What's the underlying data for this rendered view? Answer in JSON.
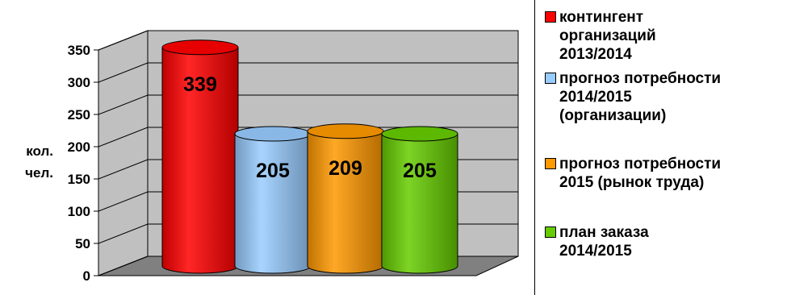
{
  "chart_data": {
    "type": "bar",
    "style": "3d-cylinder",
    "categories": [
      "контингент организаций 2013/2014",
      "прогноз потребности 2014/2015 (организации)",
      "прогноз потребности 2015 (рынок труда)",
      "план заказа 2014/2015"
    ],
    "values": [
      339,
      205,
      209,
      205
    ],
    "data_labels": [
      "339",
      "205",
      "209",
      "205"
    ],
    "ylabel_lines": [
      "кол.",
      "чел."
    ],
    "ylim": [
      0,
      350
    ],
    "yticks": [
      "0",
      "50",
      "100",
      "150",
      "200",
      "250",
      "300",
      "350"
    ],
    "grid": true,
    "legend_position": "right",
    "colors": [
      "#ff0000",
      "#99ccff",
      "#ff9900",
      "#66cc00"
    ],
    "legend": [
      {
        "label": "контингент\nорганизаций\n2013/2014",
        "color": "#ff0000"
      },
      {
        "label": "прогноз потребности\n2014/2015\n(организации)",
        "color": "#99ccff"
      },
      {
        "label": "прогноз потребности\n2015 (рынок труда)",
        "color": "#ff9900"
      },
      {
        "label": "план заказа\n2014/2015",
        "color": "#66cc00"
      }
    ]
  }
}
